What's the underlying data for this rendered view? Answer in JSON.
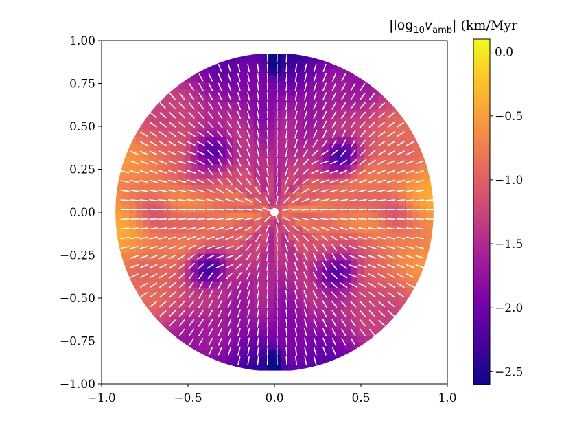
{
  "chart_data": {
    "type": "heatmap",
    "title": "",
    "xlabel": "",
    "ylabel": "",
    "xlim": [
      -1.0,
      1.0
    ],
    "ylim": [
      -1.0,
      1.0
    ],
    "disk_radius": 0.92,
    "x_ticks": [
      -1.0,
      -0.5,
      0.0,
      0.5,
      1.0
    ],
    "x_tick_labels": [
      "−1.0",
      "−0.5",
      "0.0",
      "0.5",
      "1.0"
    ],
    "y_ticks": [
      1.0,
      0.75,
      0.5,
      0.25,
      0.0,
      -0.25,
      -0.5,
      -0.75,
      -1.0
    ],
    "y_tick_labels": [
      "1.00",
      "0.75",
      "0.50",
      "0.25",
      "0.00",
      "−0.25",
      "−0.50",
      "−0.75",
      "−1.00"
    ],
    "colorbar": {
      "label_prefix": "|log",
      "label_sub1": "10",
      "label_var": "v",
      "label_sub2": "amb",
      "label_suffix": "| (km/Myr",
      "range": [
        -2.6,
        0.1
      ],
      "ticks": [
        0.0,
        -0.5,
        -1.0,
        -1.5,
        -2.0,
        -2.5
      ],
      "tick_labels": [
        "0.0",
        "−0.5",
        "−1.0",
        "−1.5",
        "−2.0",
        "−2.5"
      ],
      "colormap": "plasma"
    },
    "features": {
      "vortex_centers": [
        [
          -0.38,
          0.33
        ],
        [
          0.38,
          0.33
        ],
        [
          -0.38,
          -0.33
        ],
        [
          0.38,
          -0.33
        ]
      ],
      "central_hole": [
        0.0,
        0.0
      ],
      "vector_color": "#ffffff"
    }
  }
}
